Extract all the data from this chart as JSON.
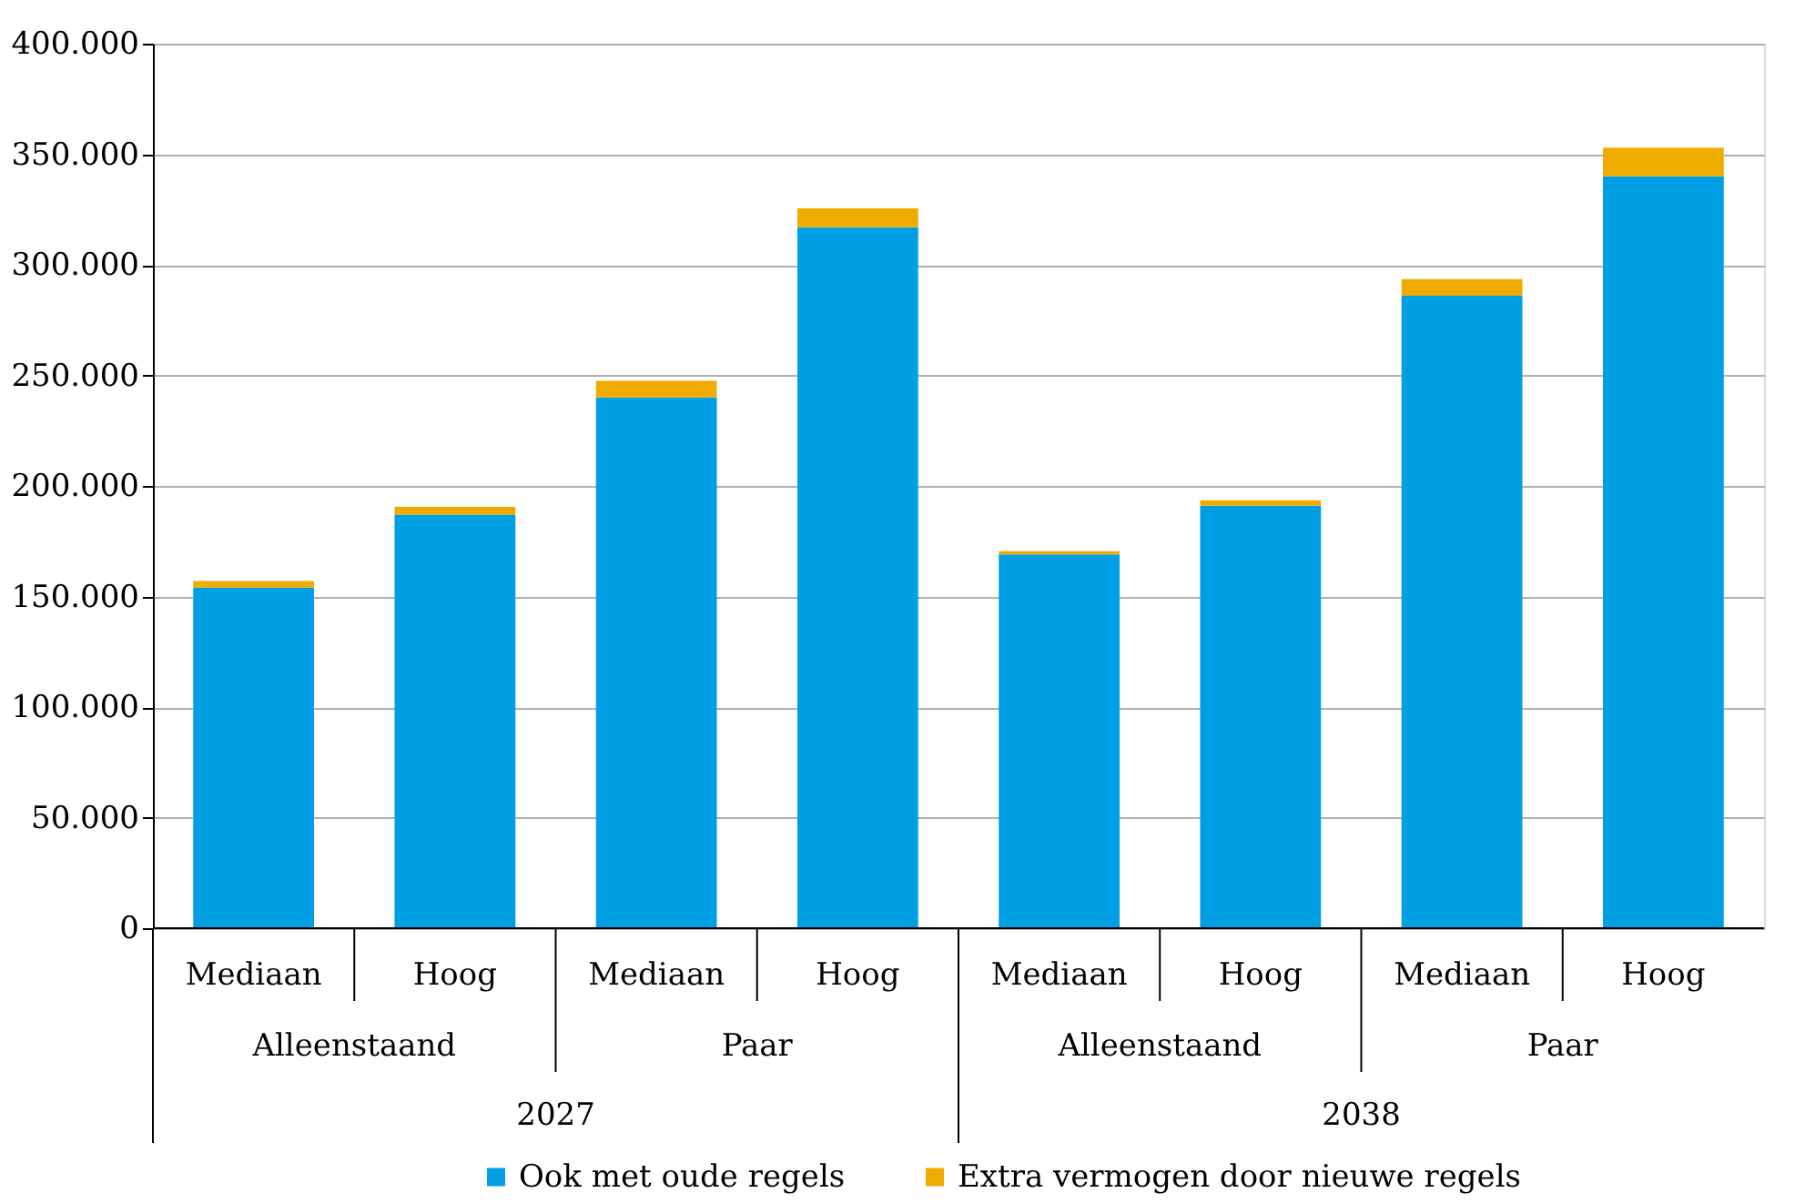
{
  "chart_data": {
    "type": "bar",
    "stacked": true,
    "categories": [
      "Mediaan",
      "Hoog",
      "Mediaan",
      "Hoog",
      "Mediaan",
      "Hoog",
      "Mediaan",
      "Hoog"
    ],
    "annotations": [
      "Alleenstaand",
      "Paar",
      "Alleenstaand",
      "Paar",
      "2027",
      "2038"
    ],
    "series": [
      {
        "name": "Ook met oude regels",
        "color": "#009fe3",
        "values": [
          154000,
          187000,
          240000,
          317000,
          169000,
          191000,
          286000,
          340000
        ]
      },
      {
        "name": "Extra vermogen door nieuwe regels",
        "color": "#f0ab00",
        "values": [
          3000,
          3500,
          7500,
          8500,
          1500,
          2500,
          7500,
          13000
        ]
      }
    ],
    "ylim": [
      0,
      400000
    ],
    "yticks": [
      {
        "value": 0,
        "label": "0"
      },
      {
        "value": 50000,
        "label": "50.000"
      },
      {
        "value": 100000,
        "label": "100.000"
      },
      {
        "value": 150000,
        "label": "150.000"
      },
      {
        "value": 200000,
        "label": "200.000"
      },
      {
        "value": 250000,
        "label": "250.000"
      },
      {
        "value": 300000,
        "label": "300.000"
      },
      {
        "value": 350000,
        "label": "350.000"
      },
      {
        "value": 400000,
        "label": "400.000"
      }
    ],
    "grid": "y",
    "legend": "bottom"
  }
}
